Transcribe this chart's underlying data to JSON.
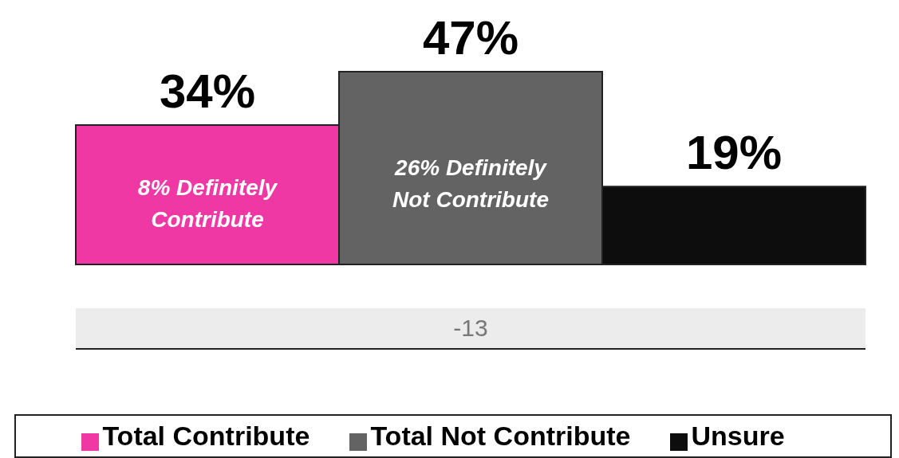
{
  "chart_data": {
    "type": "bar",
    "categories": [
      null
    ],
    "series": [
      {
        "name": "Total Contribute",
        "color": "#f038a4",
        "values": [
          34
        ],
        "value_labels": [
          "34%"
        ]
      },
      {
        "name": "Total Not Contribute",
        "color": "#636363",
        "values": [
          47
        ],
        "value_labels": [
          "47%"
        ]
      },
      {
        "name": "Unsure",
        "color": "#0d0d0d",
        "values": [
          19
        ],
        "value_labels": [
          "19%"
        ]
      }
    ],
    "annotations": [
      "8% Definitely Contribute",
      "26% Definitely Not Contribute",
      "-13"
    ],
    "legend": "bottom"
  }
}
